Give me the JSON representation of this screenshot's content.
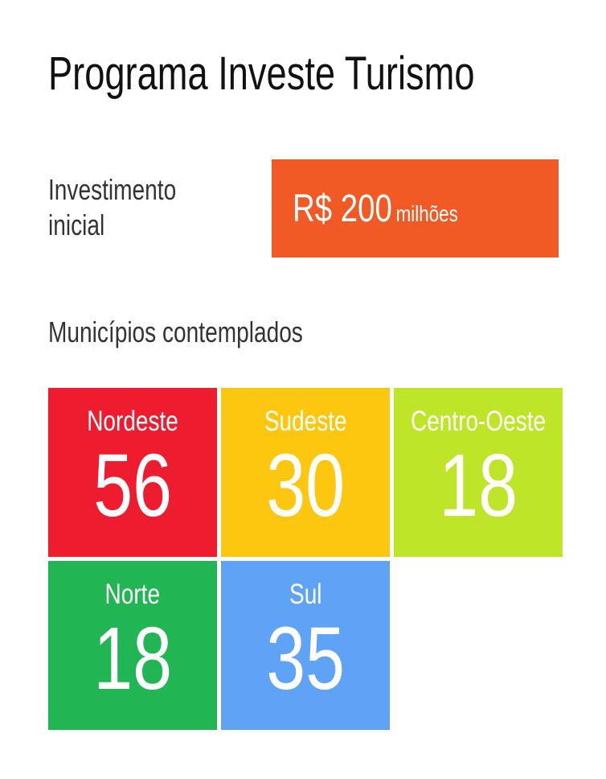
{
  "title": "Programa Investe Turismo",
  "investment": {
    "label_line1": "Investimento",
    "label_line2": "inicial",
    "value": "R$ 200",
    "unit": "milhões",
    "color": "#f15a24"
  },
  "municipalities": {
    "label": "Municípios contemplados",
    "regions": [
      {
        "name": "Nordeste",
        "count": "56",
        "color": "#ed1c2e"
      },
      {
        "name": "Sudeste",
        "count": "30",
        "color": "#fdc70f"
      },
      {
        "name": "Centro-Oeste",
        "count": "18",
        "color": "#bee527"
      },
      {
        "name": "Norte",
        "count": "18",
        "color": "#22b554"
      },
      {
        "name": "Sul",
        "count": "35",
        "color": "#5fa3f6"
      }
    ]
  }
}
